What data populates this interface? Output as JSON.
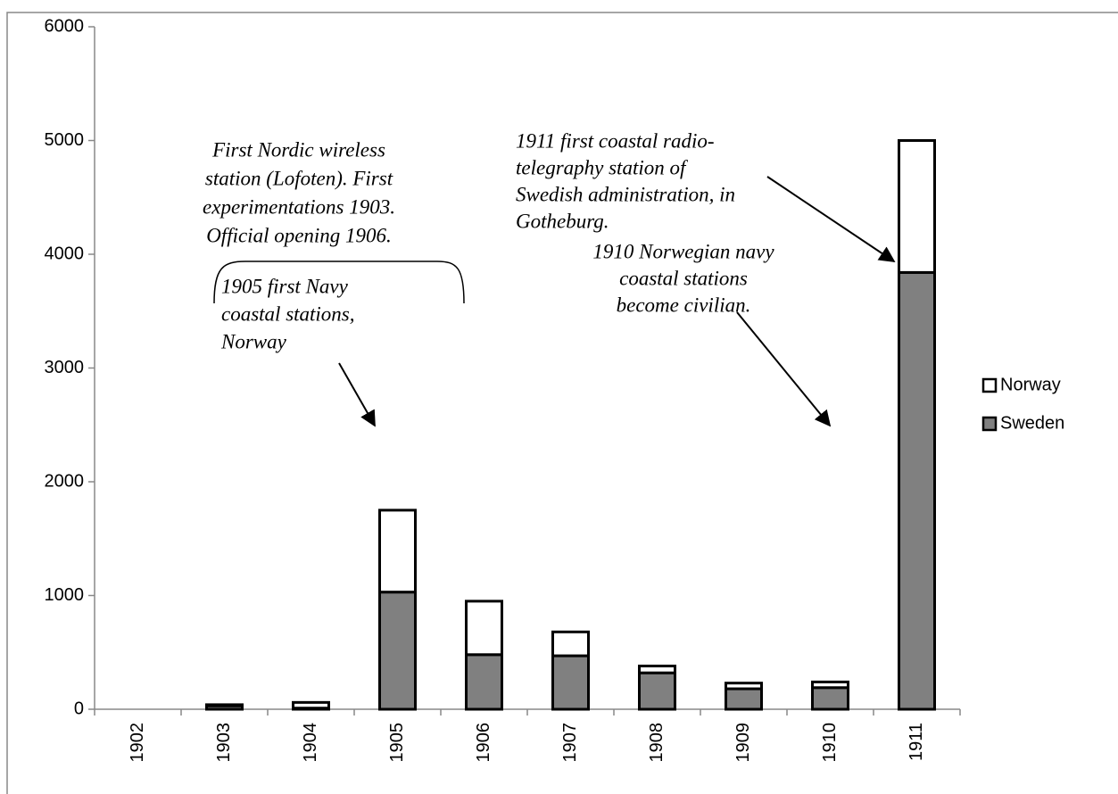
{
  "chart_data": {
    "type": "stacked_bar",
    "categories": [
      "1902",
      "1903",
      "1904",
      "1905",
      "1906",
      "1907",
      "1908",
      "1909",
      "1910",
      "1911"
    ],
    "series": [
      {
        "name": "Sweden",
        "color": "#808080",
        "values": [
          0,
          30,
          10,
          1030,
          480,
          470,
          320,
          180,
          190,
          3840
        ]
      },
      {
        "name": "Norway",
        "color": "#ffffff",
        "values": [
          0,
          10,
          50,
          720,
          470,
          210,
          60,
          50,
          50,
          1160
        ]
      }
    ],
    "ylim": [
      0,
      6000
    ],
    "yticks": [
      0,
      1000,
      2000,
      3000,
      4000,
      5000,
      6000
    ],
    "legend": "right",
    "annotations": [
      {
        "lines": [
          "First Nordic wireless",
          "station (Lofoten). First",
          "experimentations 1903.",
          "Official opening 1906."
        ]
      },
      {
        "lines": [
          "1905 first Navy",
          "coastal stations,",
          "Norway"
        ]
      },
      {
        "lines": [
          "1910 Norwegian navy",
          "coastal stations",
          "become civilian."
        ]
      },
      {
        "lines": [
          "1911 first coastal radio-",
          "telegraphy station of",
          "Swedish administration, in",
          "Gotheburg."
        ]
      }
    ]
  }
}
